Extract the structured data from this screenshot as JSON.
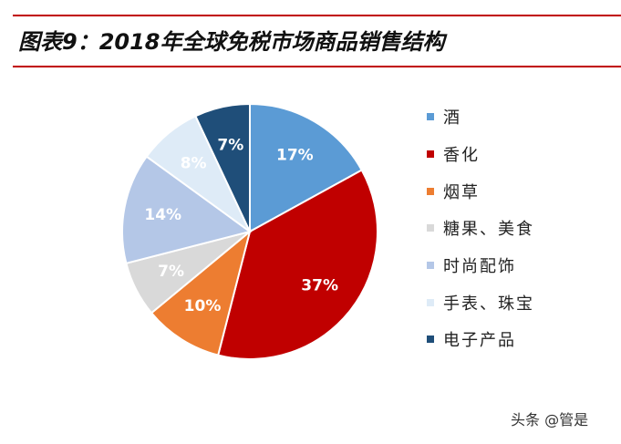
{
  "title": "图表9：2018年全球免税市场商品销售结构",
  "watermark": "头条 @管是",
  "chart_data": {
    "type": "pie",
    "title": "图表9：2018年全球免税市场商品销售结构",
    "legend_position": "right",
    "slices": [
      {
        "label": "酒",
        "value": 17,
        "value_label": "17%",
        "color": "#5b9bd5",
        "text_color": "#ffffff"
      },
      {
        "label": "香化",
        "value": 37,
        "value_label": "37%",
        "color": "#c00000",
        "text_color": "#ffffff"
      },
      {
        "label": "烟草",
        "value": 10,
        "value_label": "10%",
        "color": "#ed7d31",
        "text_color": "#ffffff"
      },
      {
        "label": "糖果、美食",
        "value": 7,
        "value_label": "7%",
        "color": "#d9d9d9",
        "text_color": "#ffffff"
      },
      {
        "label": "时尚配饰",
        "value": 14,
        "value_label": "14%",
        "color": "#b4c7e7",
        "text_color": "#ffffff"
      },
      {
        "label": "手表、珠宝",
        "value": 8,
        "value_label": "8%",
        "color": "#deebf7",
        "text_color": "#ffffff"
      },
      {
        "label": "电子产品",
        "value": 7,
        "value_label": "7%",
        "color": "#1f4e79",
        "text_color": "#ffffff"
      }
    ]
  }
}
